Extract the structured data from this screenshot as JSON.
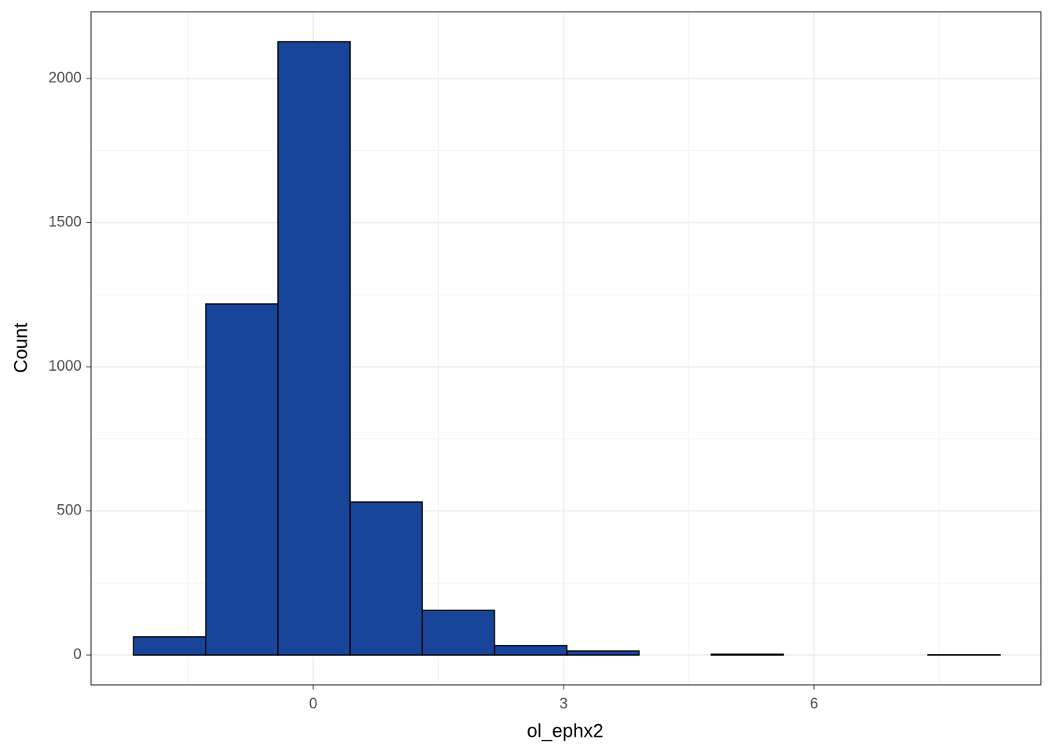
{
  "chart_data": {
    "type": "histogram",
    "x_label": "ol_ephx2",
    "y_label": "Count",
    "bins": [
      -2.154,
      -1.288,
      -0.423,
      0.442,
      1.307,
      2.172,
      3.038,
      3.903,
      4.768,
      5.633,
      6.499,
      7.364,
      8.229
    ],
    "values": [
      63,
      1218,
      2128,
      531,
      155,
      33,
      14,
      0,
      3,
      0,
      0,
      1
    ],
    "color": "#18449a",
    "xlim": [
      -2.662,
      8.718
    ],
    "xticks": [
      0,
      3,
      6
    ],
    "ylim": [
      -103.5,
      2231.6
    ],
    "yticks": [
      0,
      500,
      1000,
      1500,
      2000
    ],
    "grid": true
  }
}
